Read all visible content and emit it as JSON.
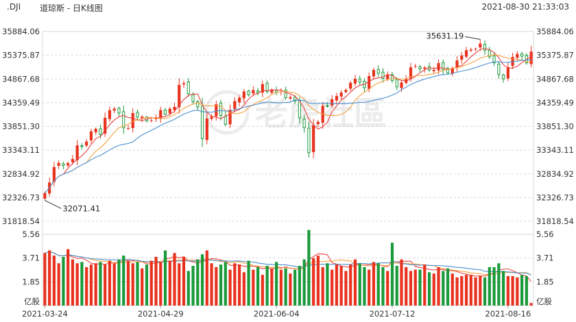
{
  "header": {
    "symbol": ".DJI",
    "title": "道琼斯 - 日K线图",
    "timestamp": "2021-08-30 21:33:03"
  },
  "watermark": "老虎社區",
  "colors": {
    "up": "#e8321e",
    "down": "#1a9a3a",
    "ma5": "#e84040",
    "ma10": "#f5a040",
    "ma20": "#4a8fd0",
    "grid": "#d8d8d8"
  },
  "chart_data": {
    "type": "candlestick",
    "price_ylim": [
      31818.54,
      35884.06
    ],
    "price_ticks": [
      "35884.06",
      "35375.87",
      "34867.68",
      "34359.49",
      "33851.30",
      "33343.11",
      "32834.92",
      "32326.73",
      "31818.54"
    ],
    "volume_ylim": [
      0,
      5.56
    ],
    "volume_ticks": [
      "5.56",
      "3.71",
      "1.85"
    ],
    "volume_unit": "亿股",
    "x_labels": [
      "2021-03-24",
      "2021-04-29",
      "2021-06-04",
      "2021-07-12",
      "2021-08-16"
    ],
    "annotations": {
      "high_label": "35631.19",
      "low_label": "32071.41"
    },
    "closes": [
      32423,
      32650,
      32981,
      33069,
      33015,
      33066,
      33153,
      33446,
      33430,
      33527,
      33745,
      33800,
      33677,
      34036,
      34200,
      34230,
      34140,
      33821,
      33815,
      34137,
      34049,
      34060,
      33970,
      33980,
      34043,
      34200,
      34113,
      34230,
      34270,
      34742,
      34777,
      34550,
      34382,
      34269,
      33587,
      34021,
      34060,
      34327,
      34084,
      33896,
      34207,
      34394,
      34464,
      34600,
      34529,
      34630,
      34575,
      34756,
      34600,
      34630,
      34577,
      34600,
      34466,
      34479,
      34394,
      34033,
      33823,
      33290,
      33876,
      33946,
      34292,
      34283,
      34433,
      34502,
      34577,
      34633,
      34786,
      34870,
      34800,
      34680,
      34930,
      35061,
      34987,
      34880,
      34960,
      34836,
      34700,
      34792,
      34866,
      35117,
      35144,
      35086,
      35116,
      35060,
      35060,
      35208,
      35064,
      34999,
      35101,
      35264,
      35370,
      35485,
      35499,
      35515,
      35625,
      35483,
      35343,
      35213,
      34962,
      34870,
      35120,
      35340,
      35405,
      35355,
      35213,
      35455
    ],
    "volumes": [
      4.1,
      4.3,
      3.9,
      3.3,
      3.8,
      4.4,
      3.6,
      3.3,
      3.4,
      3.0,
      3.2,
      3.3,
      3.4,
      3.2,
      3.5,
      3.3,
      3.6,
      3.9,
      3.5,
      3.3,
      3.4,
      2.9,
      3.2,
      3.5,
      3.8,
      3.4,
      4.3,
      3.5,
      4.1,
      3.3,
      3.8,
      2.7,
      3.1,
      3.6,
      4.0,
      4.3,
      3.3,
      3.0,
      3.2,
      3.4,
      2.8,
      3.3,
      3.2,
      2.6,
      3.5,
      2.8,
      3.0,
      2.4,
      3.1,
      2.9,
      3.4,
      2.8,
      2.9,
      2.5,
      2.8,
      3.1,
      3.6,
      5.9,
      3.7,
      3.9,
      3.0,
      3.3,
      2.8,
      3.2,
      3.1,
      2.7,
      3.2,
      3.6,
      3.3,
      3.0,
      2.8,
      3.4,
      3.3,
      3.0,
      2.7,
      4.9,
      3.1,
      3.6,
      3.0,
      2.7,
      2.8,
      2.8,
      3.2,
      2.6,
      2.5,
      3.0,
      2.7,
      2.9,
      2.5,
      2.2,
      2.3,
      2.4,
      2.4,
      2.2,
      2.3,
      2.2,
      3.0,
      3.0,
      3.3,
      2.7,
      2.3,
      2.3,
      2.2,
      2.4,
      2.3,
      0.2
    ],
    "x_label_indices": [
      0,
      25,
      50,
      75,
      100
    ]
  }
}
